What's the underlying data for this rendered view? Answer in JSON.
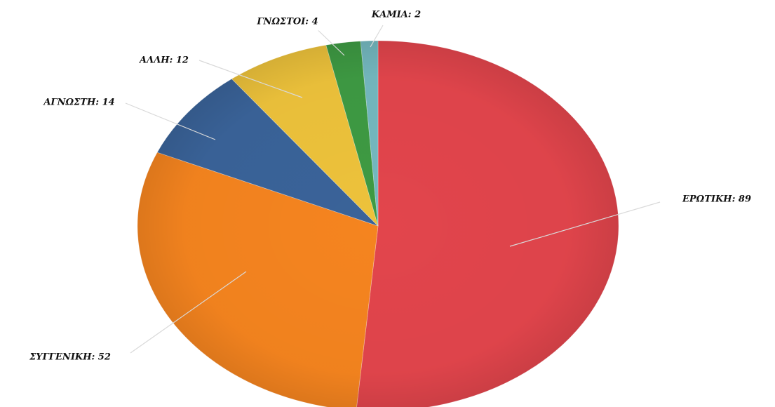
{
  "chart_data": {
    "type": "pie",
    "title": "",
    "legend": "none",
    "slices": [
      {
        "label": "ΕΡΩΤΙΚΗ",
        "value": 89,
        "data_label": "ΕΡΩΤΙΚΗ: 89",
        "color": "#e2454c"
      },
      {
        "label": "ΣΥΓΓΕΝΙΚΗ",
        "value": 52,
        "data_label": "ΣΥΓΓΕΝΙΚΗ: 52",
        "color": "#f5841f"
      },
      {
        "label": "ΑΓΝΩΣΤΗ",
        "value": 14,
        "data_label": "ΑΓΝΩΣΤΗ: 14",
        "color": "#3a6399"
      },
      {
        "label": "ΑΛΛΗ",
        "value": 12,
        "data_label": "ΑΛΛΗ: 12",
        "color": "#edc23b"
      },
      {
        "label": "ΓΝΩΣΤΟΙ",
        "value": 4,
        "data_label": "ΓΝΩΣΤΟΙ: 4",
        "color": "#3e9a43"
      },
      {
        "label": "ΚΑΜΙΑ",
        "value": 2,
        "data_label": "ΚΑΜΙΑ: 2",
        "color": "#74b8bf"
      }
    ]
  }
}
